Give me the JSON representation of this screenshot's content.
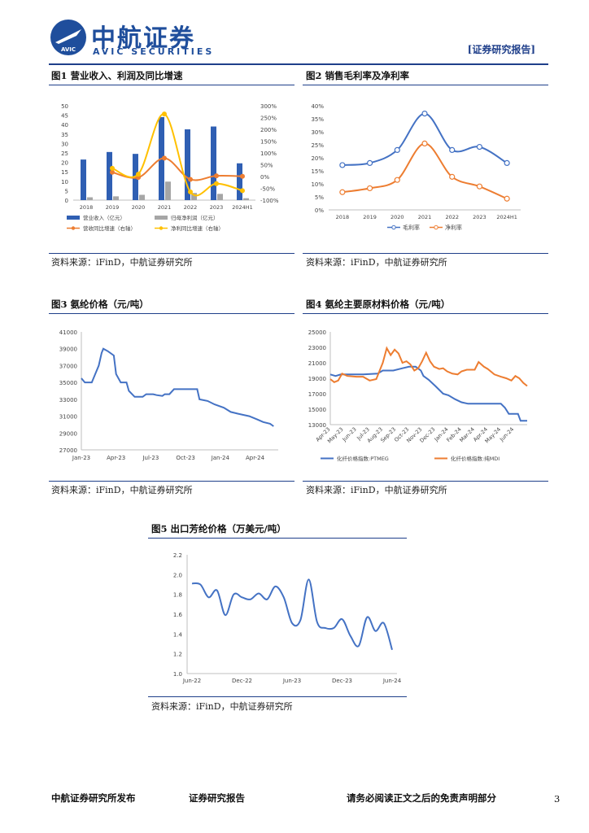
{
  "header": {
    "company_cn": "中航证券",
    "company_en": "AVIC SECURITIES",
    "logo_badge": "AVIC",
    "report_tag": "[证券研究报告]"
  },
  "figures": {
    "fig1": {
      "title": "图1  营业收入、利润及同比增速",
      "source": "资料来源：iFinD，中航证券研究所"
    },
    "fig2": {
      "title": "图2  销售毛利率及净利率",
      "source": "资料来源：iFinD，中航证券研究所"
    },
    "fig3": {
      "title": "图3  氨纶价格（元/吨）",
      "source": "资料来源：iFinD，中航证券研究所"
    },
    "fig4": {
      "title": "图4  氨纶主要原材料价格（元/吨）",
      "source": "资料来源：iFinD，中航证券研究所"
    },
    "fig5": {
      "title": "图5  出口芳纶价格（万美元/吨）",
      "source": "资料来源：iFinD，中航证券研究所"
    }
  },
  "footer": {
    "left": "中航证券研究所发布",
    "middle": "证券研究报告",
    "right": "请务必阅读正文之后的免责声明部分",
    "page_number": "3"
  },
  "chart_data": [
    {
      "id": "fig1",
      "type": "bar",
      "categories": [
        "2018",
        "2019",
        "2020",
        "2021",
        "2022",
        "2023",
        "2024H1"
      ],
      "series": [
        {
          "name": "营业收入（亿元）",
          "kind": "bar",
          "axis": "left",
          "color": "#2f5fb3",
          "values": [
            21.5,
            25.5,
            24.5,
            44,
            37.5,
            39,
            19.5
          ]
        },
        {
          "name": "归母净利润（亿元）",
          "kind": "bar",
          "axis": "left",
          "color": "#a6a6a6",
          "values": [
            1.5,
            2,
            2.8,
            9.8,
            3.8,
            3.3,
            1
          ]
        },
        {
          "name": "营收同比增速（右轴）",
          "kind": "line",
          "axis": "right",
          "color": "#ed7d31",
          "values": [
            null,
            18,
            -4,
            78,
            -12,
            3,
            1
          ]
        },
        {
          "name": "净利同比增速（右轴）",
          "kind": "line",
          "axis": "right",
          "color": "#ffc000",
          "values": [
            null,
            35,
            10,
            265,
            -65,
            -30,
            -60
          ]
        }
      ],
      "left_ylim": [
        0,
        50
      ],
      "left_ticks": [
        0,
        5,
        10,
        15,
        20,
        25,
        30,
        35,
        40,
        45,
        50
      ],
      "right_ylim": [
        -100,
        300
      ],
      "right_ticks": [
        "-100%",
        "-50%",
        "0%",
        "50%",
        "100%",
        "150%",
        "200%",
        "250%",
        "300%"
      ]
    },
    {
      "id": "fig2",
      "type": "line",
      "categories": [
        "2018",
        "2019",
        "2020",
        "2021",
        "2022",
        "2023",
        "2024H1"
      ],
      "series": [
        {
          "name": "毛利率",
          "color": "#4472c4",
          "values": [
            17.2,
            18,
            23,
            37,
            23,
            24.2,
            18
          ]
        },
        {
          "name": "净利率",
          "color": "#ed7d31",
          "values": [
            6.8,
            8.3,
            11.5,
            25.5,
            12.7,
            9,
            4.3
          ]
        }
      ],
      "ylim": [
        0,
        40
      ],
      "y_ticks": [
        "0%",
        "5%",
        "10%",
        "15%",
        "20%",
        "25%",
        "30%",
        "35%",
        "40%"
      ]
    },
    {
      "id": "fig3",
      "type": "line",
      "x_ticks": [
        "Jan-23",
        "Apr-23",
        "Jul-23",
        "Oct-23",
        "Jan-24",
        "Apr-24"
      ],
      "x_range": [
        0,
        17
      ],
      "ylim": [
        27000,
        41000
      ],
      "y_ticks": [
        "27000",
        "29000",
        "31000",
        "33000",
        "35000",
        "37000",
        "39000",
        "41000"
      ],
      "series": [
        {
          "name": "氨纶价格",
          "color": "#4472c4",
          "points": [
            [
              0,
              35500
            ],
            [
              0.3,
              35000
            ],
            [
              0.9,
              35000
            ],
            [
              1.2,
              36000
            ],
            [
              1.5,
              37000
            ],
            [
              1.75,
              38500
            ],
            [
              1.9,
              39000
            ],
            [
              2.3,
              38700
            ],
            [
              2.8,
              38200
            ],
            [
              3.0,
              36000
            ],
            [
              3.4,
              35000
            ],
            [
              3.9,
              35000
            ],
            [
              4.1,
              34000
            ],
            [
              4.6,
              33300
            ],
            [
              5.3,
              33300
            ],
            [
              5.6,
              33600
            ],
            [
              6.2,
              33600
            ],
            [
              6.5,
              33500
            ],
            [
              7.0,
              33400
            ],
            [
              7.2,
              33600
            ],
            [
              7.6,
              33600
            ],
            [
              8.0,
              34200
            ],
            [
              9.0,
              34200
            ],
            [
              10.0,
              34200
            ],
            [
              10.2,
              33000
            ],
            [
              10.9,
              32800
            ],
            [
              11.5,
              32400
            ],
            [
              12.3,
              32000
            ],
            [
              12.9,
              31500
            ],
            [
              13.5,
              31300
            ],
            [
              14.5,
              31000
            ],
            [
              15.2,
              30600
            ],
            [
              15.7,
              30300
            ],
            [
              16.3,
              30100
            ],
            [
              16.6,
              29800
            ]
          ]
        }
      ]
    },
    {
      "id": "fig4",
      "type": "line",
      "x_ticks": [
        "Apr-23",
        "May-23",
        "Jun-23",
        "Jul-23",
        "Aug-23",
        "Sep-23",
        "Oct-23",
        "Nov-23",
        "Dec-23",
        "Jan-24",
        "Feb-24",
        "Mar-24",
        "Apr-24",
        "May-24",
        "Jun-24"
      ],
      "x_range": [
        0,
        15
      ],
      "ylim": [
        13000,
        25000
      ],
      "y_ticks": [
        "13000",
        "15000",
        "17000",
        "19000",
        "21000",
        "23000",
        "25000"
      ],
      "series": [
        {
          "name": "化纤价格指数:PTMEG",
          "color": "#4472c4",
          "points": [
            [
              0,
              19500
            ],
            [
              0.4,
              19300
            ],
            [
              0.8,
              19500
            ],
            [
              1.5,
              19500
            ],
            [
              2.5,
              19500
            ],
            [
              3.6,
              19600
            ],
            [
              4.0,
              20000
            ],
            [
              4.8,
              20000
            ],
            [
              5.5,
              20300
            ],
            [
              6.0,
              20500
            ],
            [
              6.5,
              20500
            ],
            [
              6.9,
              20000
            ],
            [
              7.1,
              19300
            ],
            [
              7.5,
              18800
            ],
            [
              8.0,
              18000
            ],
            [
              8.6,
              17000
            ],
            [
              9.0,
              16800
            ],
            [
              9.5,
              16300
            ],
            [
              10.0,
              15900
            ],
            [
              10.5,
              15700
            ],
            [
              12.0,
              15700
            ],
            [
              13.0,
              15700
            ],
            [
              13.3,
              15200
            ],
            [
              13.6,
              14400
            ],
            [
              14.3,
              14400
            ],
            [
              14.5,
              13500
            ],
            [
              15.0,
              13500
            ]
          ]
        },
        {
          "name": "化纤价格指数:纯MDI",
          "color": "#ed7d31",
          "points": [
            [
              0,
              18900
            ],
            [
              0.3,
              18500
            ],
            [
              0.6,
              18700
            ],
            [
              0.9,
              19600
            ],
            [
              1.3,
              19300
            ],
            [
              2.0,
              19200
            ],
            [
              2.5,
              19200
            ],
            [
              3.0,
              18700
            ],
            [
              3.5,
              18900
            ],
            [
              4.0,
              21000
            ],
            [
              4.3,
              22900
            ],
            [
              4.6,
              22000
            ],
            [
              4.9,
              22700
            ],
            [
              5.2,
              22200
            ],
            [
              5.5,
              21000
            ],
            [
              5.8,
              21200
            ],
            [
              6.1,
              20800
            ],
            [
              6.4,
              20000
            ],
            [
              6.7,
              20300
            ],
            [
              7.0,
              21200
            ],
            [
              7.3,
              22300
            ],
            [
              7.6,
              21200
            ],
            [
              7.9,
              20500
            ],
            [
              8.3,
              20200
            ],
            [
              8.6,
              20300
            ],
            [
              8.9,
              19900
            ],
            [
              9.3,
              19600
            ],
            [
              9.7,
              19500
            ],
            [
              10.0,
              19900
            ],
            [
              10.4,
              20100
            ],
            [
              11.0,
              20100
            ],
            [
              11.3,
              21100
            ],
            [
              11.7,
              20500
            ],
            [
              12.0,
              20200
            ],
            [
              12.5,
              19500
            ],
            [
              13.0,
              19200
            ],
            [
              13.4,
              19000
            ],
            [
              13.8,
              18700
            ],
            [
              14.1,
              19300
            ],
            [
              14.4,
              19000
            ],
            [
              14.7,
              18400
            ],
            [
              15.0,
              18000
            ]
          ]
        }
      ]
    },
    {
      "id": "fig5",
      "type": "line",
      "x_ticks": [
        "Jun-22",
        "Dec-22",
        "Jun-23",
        "Dec-23",
        "Jun-24"
      ],
      "x_range": [
        0,
        24
      ],
      "ylim": [
        1.0,
        2.2
      ],
      "y_ticks": [
        "1.0",
        "1.2",
        "1.4",
        "1.6",
        "1.8",
        "2.0",
        "2.2"
      ],
      "series": [
        {
          "name": "出口芳纶价格",
          "color": "#4472c4",
          "points": [
            [
              0,
              1.91
            ],
            [
              1,
              1.9
            ],
            [
              2,
              1.77
            ],
            [
              3,
              1.84
            ],
            [
              4,
              1.59
            ],
            [
              5,
              1.8
            ],
            [
              6,
              1.77
            ],
            [
              7,
              1.75
            ],
            [
              8,
              1.81
            ],
            [
              9,
              1.75
            ],
            [
              10,
              1.88
            ],
            [
              11,
              1.77
            ],
            [
              12,
              1.51
            ],
            [
              13,
              1.54
            ],
            [
              14,
              1.95
            ],
            [
              15,
              1.52
            ],
            [
              16,
              1.46
            ],
            [
              17,
              1.46
            ],
            [
              18,
              1.55
            ],
            [
              19,
              1.38
            ],
            [
              20,
              1.28
            ],
            [
              21,
              1.57
            ],
            [
              22,
              1.43
            ],
            [
              23,
              1.51
            ],
            [
              24,
              1.24
            ]
          ]
        }
      ]
    }
  ]
}
